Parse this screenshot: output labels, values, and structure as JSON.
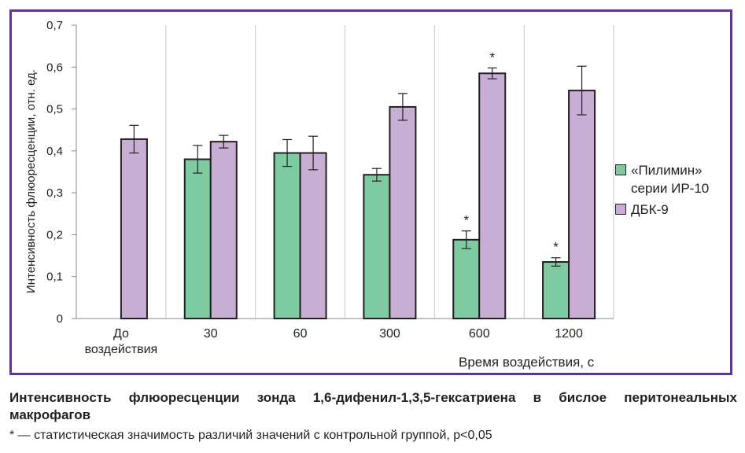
{
  "chart_data": {
    "type": "bar",
    "title": "",
    "xlabel": "Время воздействия, с",
    "ylabel": "Интенсивность флюоресценции, отн. ед.",
    "ylim": [
      0,
      0.7
    ],
    "yticks": [
      "0",
      "0,1",
      "0,2",
      "0,3",
      "0,4",
      "0,5",
      "0,6",
      "0,7"
    ],
    "categories": [
      "До\nвоздействия",
      "30",
      "60",
      "300",
      "600",
      "1200"
    ],
    "grid": "vertical",
    "legend_position": "right",
    "series": [
      {
        "name": "«Пилимин»\nсерии ИР-10",
        "color": "#7ecba1",
        "values": [
          null,
          0.38,
          0.395,
          0.343,
          0.188,
          0.135
        ],
        "errors": [
          null,
          0.033,
          0.032,
          0.015,
          0.021,
          0.01
        ],
        "significant": [
          false,
          false,
          false,
          false,
          true,
          true
        ]
      },
      {
        "name": "ДБК-9",
        "color": "#c8aed4",
        "values": [
          0.428,
          0.422,
          0.395,
          0.505,
          0.585,
          0.544
        ],
        "errors": [
          0.033,
          0.015,
          0.04,
          0.032,
          0.013,
          0.058
        ],
        "significant": [
          false,
          false,
          false,
          false,
          true,
          false
        ]
      }
    ],
    "significance_marker": "*"
  },
  "caption": "Интенсивность флюоресценции зонда 1,6-дифенил-1,3,5-гексатриена в бислое перитонеальных макрофагов",
  "note": "* — статистическая значимость различий значений с контрольной группой, p<0,05"
}
